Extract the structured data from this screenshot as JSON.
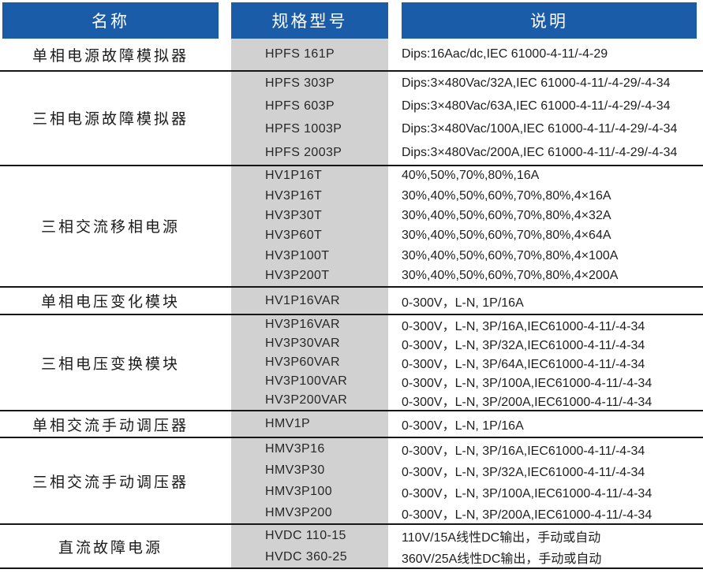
{
  "table": {
    "columns": [
      {
        "label": "名称"
      },
      {
        "label": "规格型号"
      },
      {
        "label": "说明"
      }
    ],
    "groups": [
      {
        "name": "单相电源故障模拟器",
        "rows": [
          {
            "model": "HPFS 161P",
            "desc": "Dips:16Aac/dc,IEC 61000-4-11/-4-29"
          }
        ]
      },
      {
        "name": "三相电源故障模拟器",
        "rows": [
          {
            "model": "HPFS 303P",
            "desc": "Dips:3×480Vac/32A,IEC 61000-4-11/-4-29/-4-34"
          },
          {
            "model": "HPFS 603P",
            "desc": "Dips:3×480Vac/63A,IEC 61000-4-11/-4-29/-4-34"
          },
          {
            "model": "HPFS 1003P",
            "desc": "Dips:3×480Vac/100A,IEC 61000-4-11/-4-29/-4-34"
          },
          {
            "model": "HPFS 2003P",
            "desc": "Dips:3×480Vac/200A,IEC 61000-4-11/-4-29/-4-34"
          }
        ]
      },
      {
        "name": "三相交流移相电源",
        "rows": [
          {
            "model": "HV1P16T",
            "desc": "40%,50%,70%,80%,16A"
          },
          {
            "model": "HV3P16T",
            "desc": "30%,40%,50%,60%,70%,80%,4×16A"
          },
          {
            "model": "HV3P30T",
            "desc": "30%,40%,50%,60%,70%,80%,4×32A"
          },
          {
            "model": "HV3P60T",
            "desc": "30%,40%,50%,60%,70%,80%,4×64A"
          },
          {
            "model": "HV3P100T",
            "desc": "30%,40%,50%,60%,70%,80%,4×100A"
          },
          {
            "model": "HV3P200T",
            "desc": "30%,40%,50%,60%,70%,80%,4×200A"
          }
        ]
      },
      {
        "name": "单相电压变化模块",
        "rows": [
          {
            "model": "HV1P16VAR",
            "desc": "0-300V，L-N, 1P/16A"
          }
        ]
      },
      {
        "name": "三相电压变换模块",
        "rows": [
          {
            "model": "HV3P16VAR",
            "desc": "0-300V，L-N, 3P/16A,IEC61000-4-11/-4-34"
          },
          {
            "model": "HV3P30VAR",
            "desc": "0-300V，L-N, 3P/32A,IEC61000-4-11/-4-34"
          },
          {
            "model": "HV3P60VAR",
            "desc": "0-300V，L-N, 3P/64A,IEC61000-4-11/-4-34"
          },
          {
            "model": "HV3P100VAR",
            "desc": "0-300V，L-N, 3P/100A,IEC61000-4-11/-4-34"
          },
          {
            "model": "HV3P200VAR",
            "desc": "0-300V，L-N, 3P/200A,IEC61000-4-11/-4-34"
          }
        ]
      },
      {
        "name": "单相交流手动调压器",
        "rows": [
          {
            "model": "HMV1P",
            "desc": "0-300V，L-N, 1P/16A"
          }
        ]
      },
      {
        "name": "三相交流手动调压器",
        "rows": [
          {
            "model": "HMV3P16",
            "desc": "0-300V，L-N, 3P/16A,IEC61000-4-11/-4-34"
          },
          {
            "model": "HMV3P30",
            "desc": "0-300V，L-N, 3P/32A,IEC61000-4-11/-4-34"
          },
          {
            "model": "HMV3P100",
            "desc": "0-300V，L-N, 3P/100A,IEC61000-4-11/-4-34"
          },
          {
            "model": "HMV3P200",
            "desc": "0-300V，L-N, 3P/200A,IEC61000-4-11/-4-34"
          }
        ]
      },
      {
        "name": "直流故障电源",
        "rows": [
          {
            "model": "HVDC 110-15",
            "desc": "110V/15A线性DC输出，手动或自动"
          },
          {
            "model": "HVDC 360-25",
            "desc": "360V/25A线性DC输出，手动或自动"
          }
        ]
      }
    ]
  },
  "colors": {
    "header_bg": "#1b5ca8",
    "header_text": "#ffffff",
    "model_band_bg": "#d1d1d1",
    "rule": "#161616",
    "page_bg": "#ffffff"
  }
}
